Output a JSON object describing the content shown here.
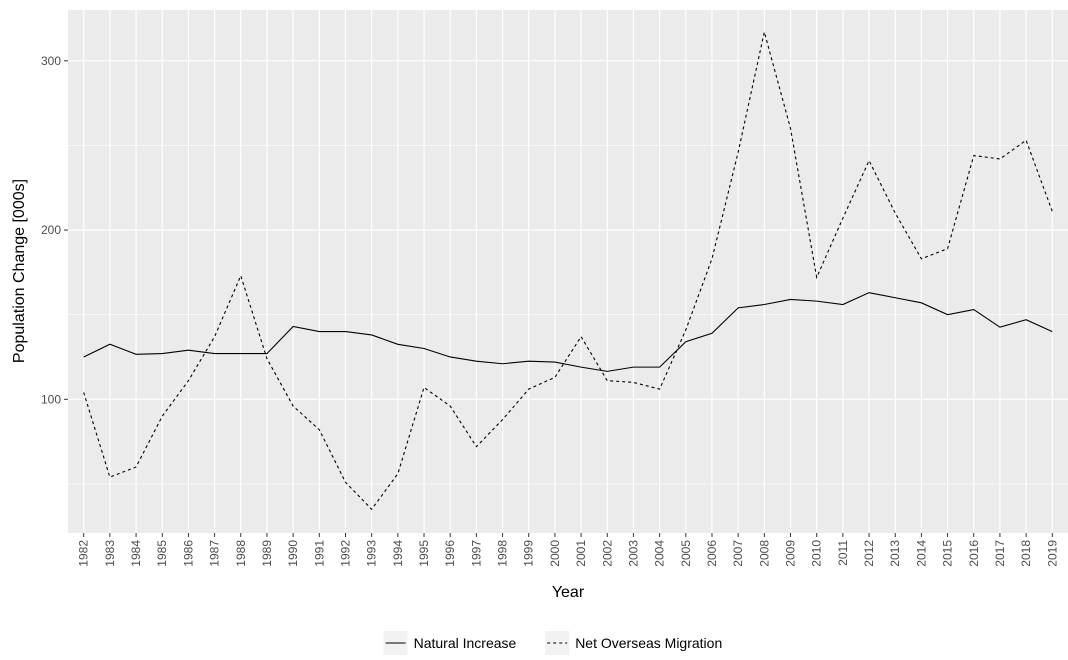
{
  "chart_data": {
    "type": "line",
    "x_label": "Year",
    "y_label": "Population Change [000s]",
    "categories": [
      "1982",
      "1983",
      "1984",
      "1985",
      "1986",
      "1987",
      "1988",
      "1989",
      "1990",
      "1991",
      "1992",
      "1993",
      "1994",
      "1995",
      "1996",
      "1997",
      "1998",
      "1999",
      "2000",
      "2001",
      "2002",
      "2003",
      "2004",
      "2005",
      "2006",
      "2007",
      "2008",
      "2009",
      "2010",
      "2011",
      "2012",
      "2013",
      "2014",
      "2015",
      "2016",
      "2017",
      "2018",
      "2019"
    ],
    "series": [
      {
        "name": "Natural Increase",
        "color": "#000000",
        "dash": "solid",
        "values": [
          125,
          132.5,
          126.6,
          127,
          129,
          127,
          127,
          127,
          143,
          140,
          140,
          138,
          132.5,
          130,
          125,
          122.5,
          121,
          122.5,
          122,
          119,
          116.5,
          119,
          119,
          134,
          139,
          154,
          156,
          159,
          158,
          156,
          163,
          160,
          157,
          150,
          153,
          142.6,
          147,
          140
        ]
      },
      {
        "name": "Net Overseas Migration",
        "color": "#000000",
        "dash": "dotted",
        "values": [
          104,
          54,
          60,
          90,
          111,
          137,
          173,
          124,
          96,
          82,
          51,
          35,
          56,
          107,
          96,
          72,
          88,
          106,
          113,
          137,
          111,
          110,
          106,
          141,
          183,
          246,
          317,
          260,
          172,
          207,
          241,
          210,
          183,
          189,
          244,
          242,
          253,
          211
        ]
      }
    ],
    "ylim": [
      21,
      330
    ],
    "yticks": [
      100,
      200,
      300
    ],
    "y_minor_ticks": [
      50,
      150,
      250
    ],
    "grid": true,
    "legend": "bottom"
  }
}
